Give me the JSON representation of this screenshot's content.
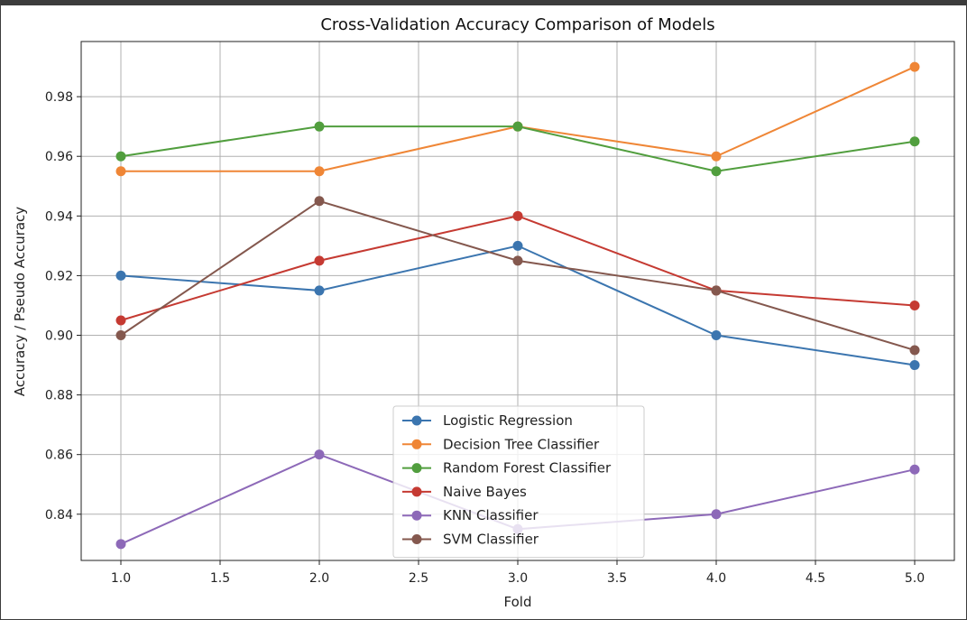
{
  "chart_data": {
    "type": "line",
    "title": "Cross-Validation Accuracy Comparison of Models",
    "xlabel": "Fold",
    "ylabel": "Accuracy / Pseudo Accuracy",
    "x": [
      1,
      2,
      3,
      4,
      5
    ],
    "xlim": [
      0.8,
      5.2
    ],
    "ylim": [
      0.8245,
      0.9985
    ],
    "xticks": [
      "1.0",
      "1.5",
      "2.0",
      "2.5",
      "3.0",
      "3.5",
      "4.0",
      "4.5",
      "5.0"
    ],
    "xtick_values": [
      1.0,
      1.5,
      2.0,
      2.5,
      3.0,
      3.5,
      4.0,
      4.5,
      5.0
    ],
    "yticks": [
      "0.84",
      "0.86",
      "0.88",
      "0.90",
      "0.92",
      "0.94",
      "0.96",
      "0.98"
    ],
    "ytick_values": [
      0.84,
      0.86,
      0.88,
      0.9,
      0.92,
      0.94,
      0.96,
      0.98
    ],
    "grid": true,
    "legend_position": "bottom-center",
    "series": [
      {
        "name": "Logistic Regression",
        "color": "#3b75af",
        "values": [
          0.92,
          0.915,
          0.93,
          0.9,
          0.89
        ]
      },
      {
        "name": "Decision Tree Classifier",
        "color": "#ef8636",
        "values": [
          0.955,
          0.955,
          0.97,
          0.96,
          0.99
        ]
      },
      {
        "name": "Random Forest Classifier",
        "color": "#519e3e",
        "values": [
          0.96,
          0.97,
          0.97,
          0.955,
          0.965
        ]
      },
      {
        "name": "Naive Bayes",
        "color": "#c53a32",
        "values": [
          0.905,
          0.925,
          0.94,
          0.915,
          0.91
        ]
      },
      {
        "name": "KNN Classifier",
        "color": "#8d69b8",
        "values": [
          0.83,
          0.86,
          0.835,
          0.84,
          0.855
        ]
      },
      {
        "name": "SVM Classifier",
        "color": "#84584e",
        "values": [
          0.9,
          0.945,
          0.925,
          0.915,
          0.895
        ]
      }
    ]
  }
}
